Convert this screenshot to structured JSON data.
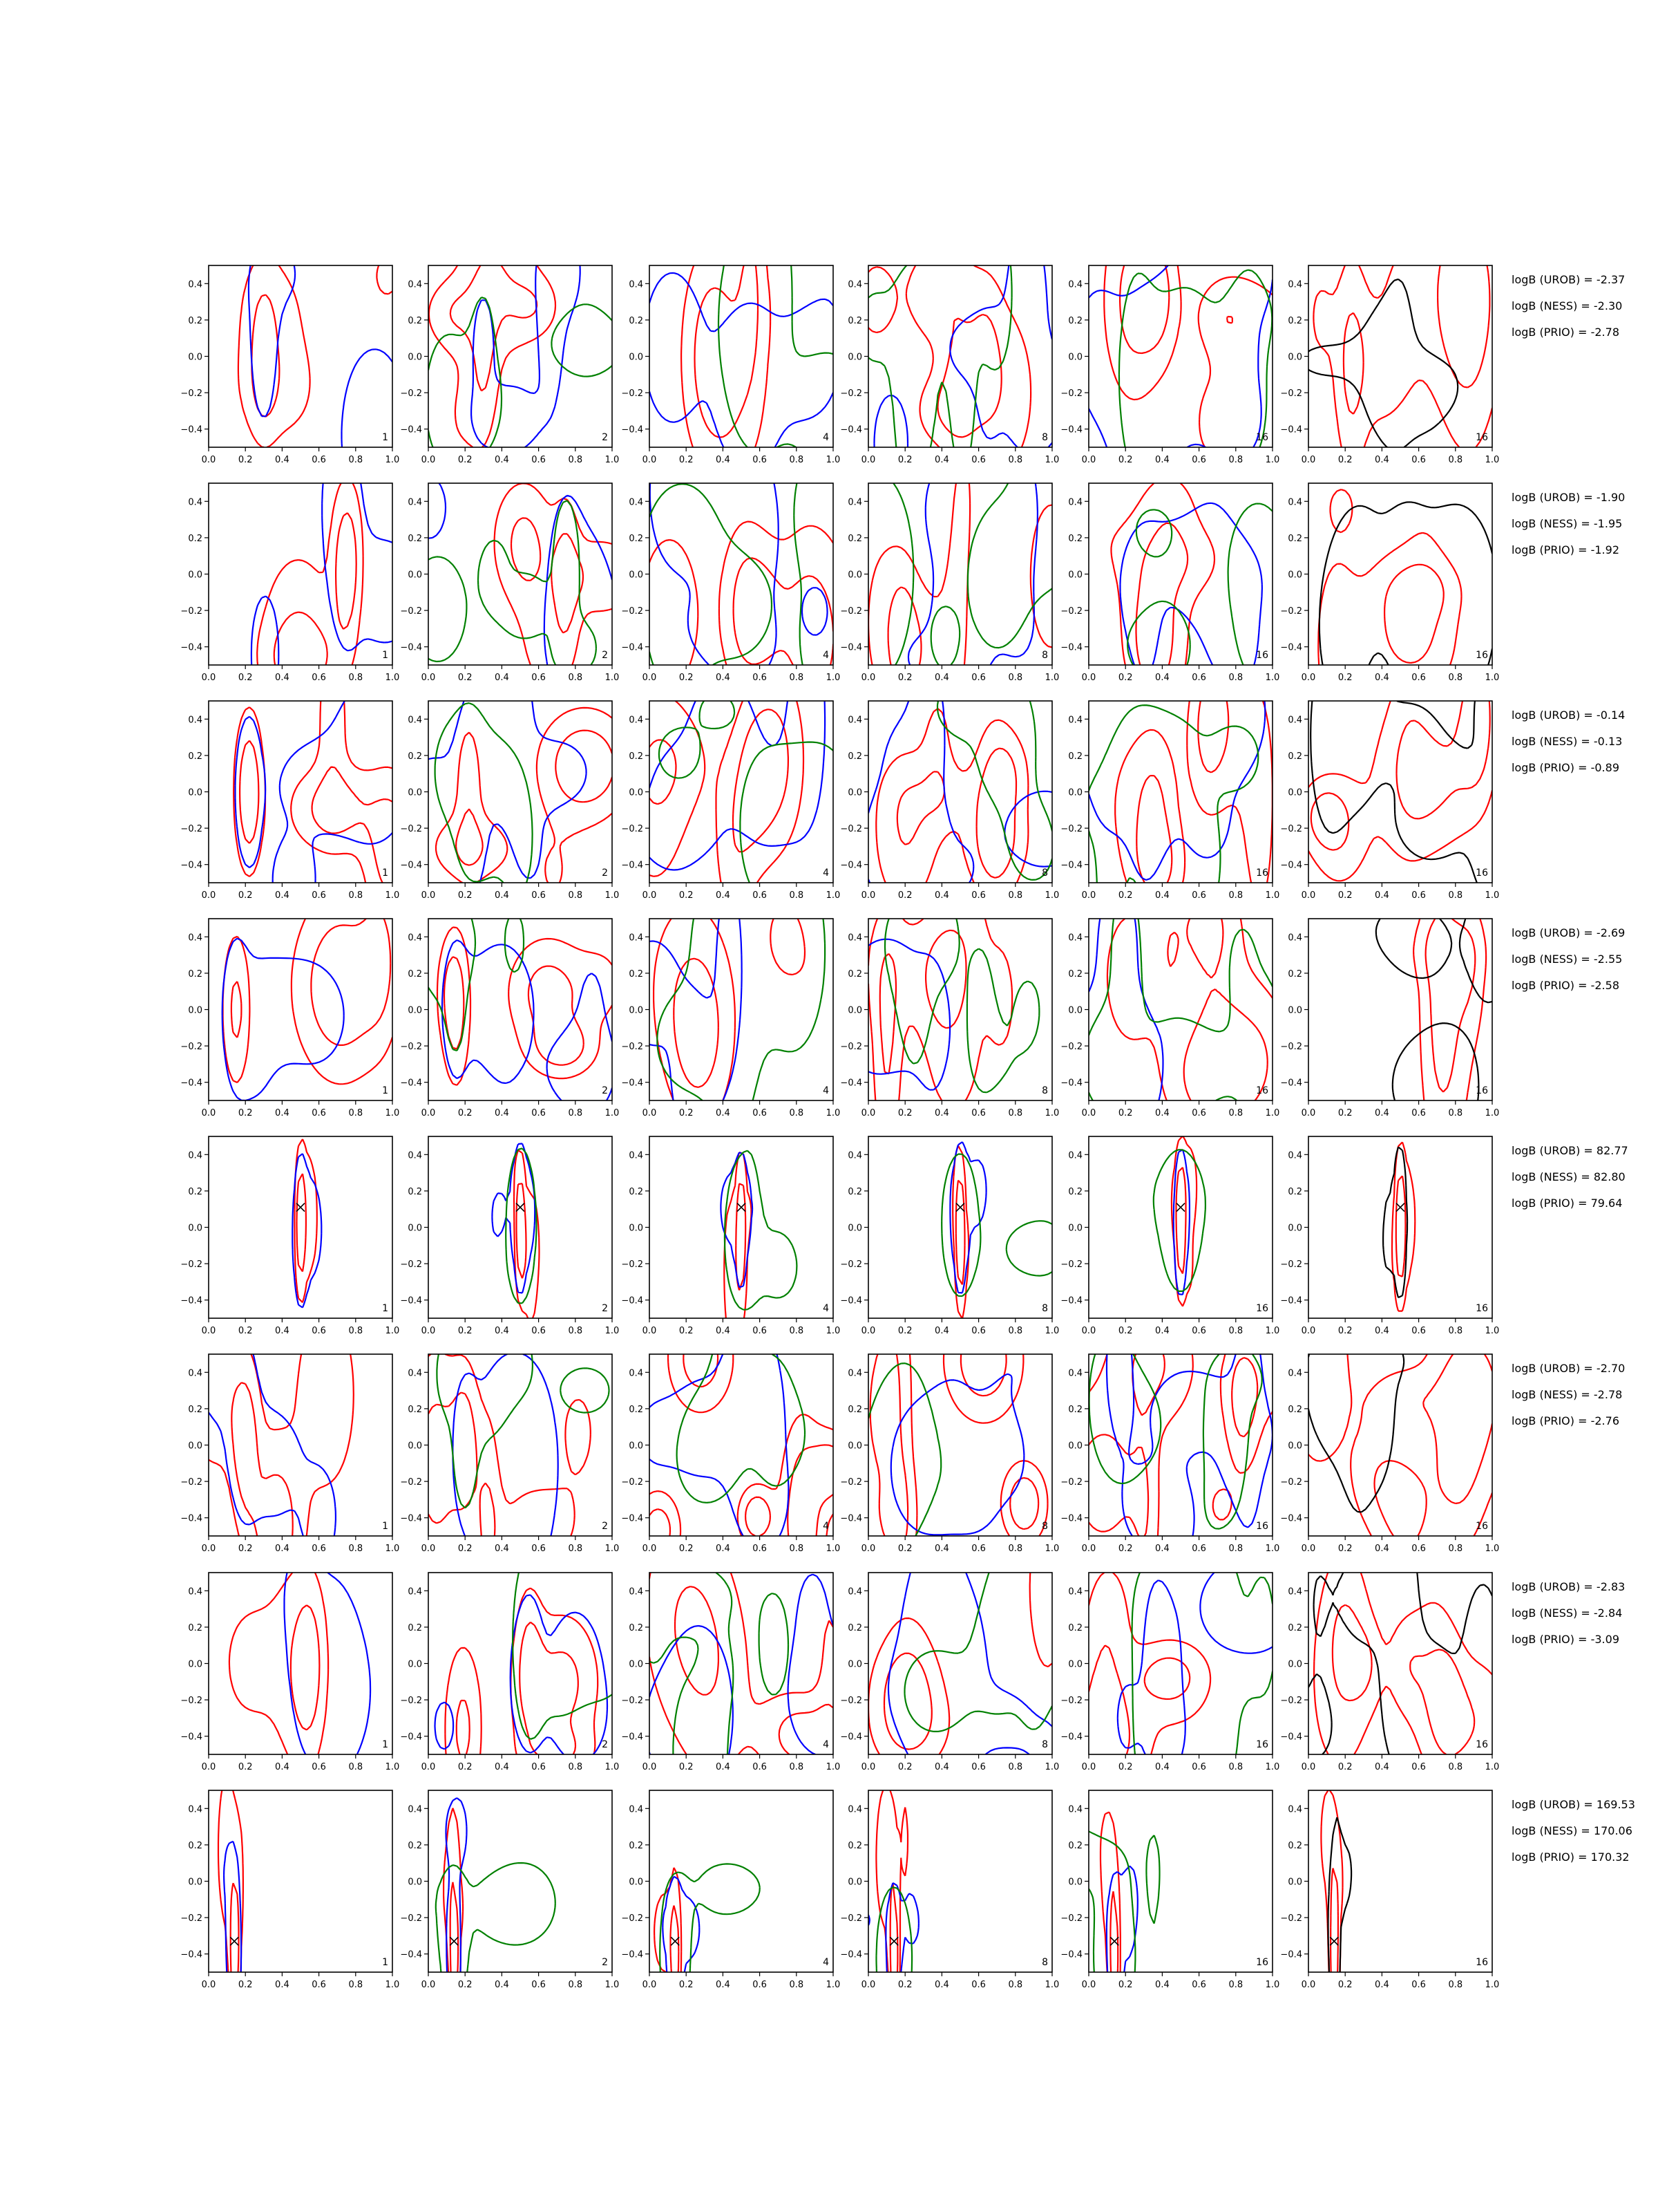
{
  "chart_data": {
    "type": "contour",
    "layout": {
      "rows": 8,
      "cols": 6
    },
    "xlim": [
      0.0,
      1.0
    ],
    "ylim": [
      -0.5,
      0.5
    ],
    "x_ticks": [
      "0.0",
      "0.2",
      "0.4",
      "0.6",
      "0.8",
      "1.0"
    ],
    "y_ticks": [
      "0.4",
      "0.2",
      "0.0",
      "−0.2",
      "−0.4"
    ],
    "panel_labels": [
      "1",
      "2",
      "4",
      "8",
      "16",
      "16"
    ],
    "colors": {
      "red": "#ff0000",
      "blue": "#0000ff",
      "green": "#008000",
      "black": "#000000"
    },
    "rows": [
      {
        "logB": [
          "logB (UROB) = -2.37",
          "logB (NESS) = -2.30",
          "logB (PRIO) = -2.78"
        ],
        "kind": "diffuse",
        "seed": 11,
        "peak": [
          0.3,
          0.0
        ]
      },
      {
        "logB": [
          "logB (UROB) = -1.90",
          "logB (NESS) = -1.95",
          "logB (PRIO) = -1.92"
        ],
        "kind": "diffuse",
        "seed": 23,
        "peak": [
          0.75,
          0.0
        ]
      },
      {
        "logB": [
          "logB (UROB) = -0.14",
          "logB (NESS) = -0.13",
          "logB (PRIO) = -0.89"
        ],
        "kind": "diffuse",
        "seed": 37,
        "peak": [
          0.22,
          0.0
        ]
      },
      {
        "logB": [
          "logB (UROB) = -2.69",
          "logB (NESS) = -2.55",
          "logB (PRIO) = -2.58"
        ],
        "kind": "diffuse",
        "seed": 41,
        "peak": [
          0.15,
          0.0
        ]
      },
      {
        "logB": [
          "logB (UROB) = 82.77",
          "logB (NESS) = 82.80",
          "logB (PRIO) = 79.64"
        ],
        "kind": "peak",
        "seed": 53,
        "peak": [
          0.5,
          0.11
        ]
      },
      {
        "logB": [
          "logB (UROB) = -2.70",
          "logB (NESS) = -2.78",
          "logB (PRIO) = -2.76"
        ],
        "kind": "diffuse",
        "seed": 67,
        "peak": [
          0.2,
          0.0
        ]
      },
      {
        "logB": [
          "logB (UROB) = -2.83",
          "logB (NESS) = -2.84",
          "logB (PRIO) = -3.09"
        ],
        "kind": "diffuse",
        "seed": 79,
        "peak": [
          0.55,
          0.0
        ]
      },
      {
        "logB": [
          "logB (UROB) = 169.53",
          "logB (NESS) = 170.06",
          "logB (PRIO) = 170.32"
        ],
        "kind": "peak",
        "seed": 83,
        "peak": [
          0.14,
          -0.33
        ]
      }
    ]
  }
}
